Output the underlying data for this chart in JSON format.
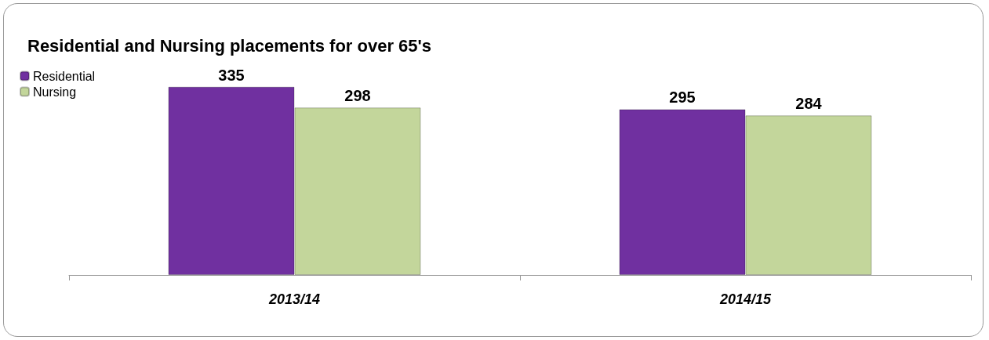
{
  "chart_data": {
    "type": "bar",
    "title": "Residential and Nursing placements for over 65's",
    "categories": [
      "2013/14",
      "2014/15"
    ],
    "series": [
      {
        "name": "Residential",
        "color": "#7030a0",
        "values": [
          335,
          295
        ]
      },
      {
        "name": "Nursing",
        "color": "#c3d69b",
        "values": [
          298,
          284
        ]
      }
    ],
    "data_labels": true,
    "grid": false,
    "legend": "top left"
  }
}
